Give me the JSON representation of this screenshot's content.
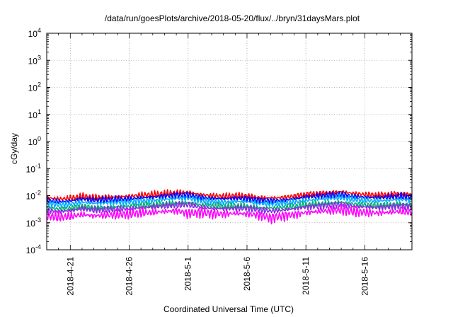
{
  "chart_data": {
    "type": "line",
    "title": "/data/run/goesPlots/archive/2018-05-20/flux/../bryn/31daysMars.plot",
    "xlabel": "Coordinated Universal Time (UTC)",
    "ylabel": "cGy/day",
    "y_scale": "log",
    "ylim": [
      0.0001,
      10000
    ],
    "xlim": [
      "2018-04-19",
      "2018-05-20"
    ],
    "grid": true,
    "legend": "none",
    "x_ticks": [
      {
        "date": "2018-04-21",
        "label": "2018-4-21"
      },
      {
        "date": "2018-04-26",
        "label": "2018-4-26"
      },
      {
        "date": "2018-05-01",
        "label": "2018-5-1"
      },
      {
        "date": "2018-05-06",
        "label": "2018-5-6"
      },
      {
        "date": "2018-05-11",
        "label": "2018-5-11"
      },
      {
        "date": "2018-05-16",
        "label": "2018-5-16"
      }
    ],
    "y_ticks": [
      {
        "value": 0.0001,
        "base": "10",
        "exp": "-4"
      },
      {
        "value": 0.001,
        "base": "10",
        "exp": "-3"
      },
      {
        "value": 0.01,
        "base": "10",
        "exp": "-2"
      },
      {
        "value": 0.1,
        "base": "10",
        "exp": "-1"
      },
      {
        "value": 1,
        "base": "10",
        "exp": "0"
      },
      {
        "value": 10,
        "base": "10",
        "exp": "1"
      },
      {
        "value": 100,
        "base": "10",
        "exp": "2"
      },
      {
        "value": 1000,
        "base": "10",
        "exp": "3"
      },
      {
        "value": 10000,
        "base": "10",
        "exp": "4"
      }
    ],
    "x": [
      "2018-04-19",
      "2018-04-20",
      "2018-04-21",
      "2018-04-22",
      "2018-04-23",
      "2018-04-24",
      "2018-04-25",
      "2018-04-26",
      "2018-04-27",
      "2018-04-28",
      "2018-04-29",
      "2018-04-30",
      "2018-05-01",
      "2018-05-02",
      "2018-05-03",
      "2018-05-04",
      "2018-05-05",
      "2018-05-06",
      "2018-05-07",
      "2018-05-08",
      "2018-05-09",
      "2018-05-10",
      "2018-05-11",
      "2018-05-12",
      "2018-05-13",
      "2018-05-14",
      "2018-05-15",
      "2018-05-16",
      "2018-05-17",
      "2018-05-18",
      "2018-05-19",
      "2018-05-20"
    ],
    "series": [
      {
        "color": "#ff0000",
        "values": [
          0.0085,
          0.0075,
          0.008,
          0.0095,
          0.0085,
          0.0088,
          0.0092,
          0.0095,
          0.0105,
          0.011,
          0.012,
          0.013,
          0.0135,
          0.011,
          0.01,
          0.0095,
          0.01,
          0.0098,
          0.0085,
          0.0082,
          0.0085,
          0.0095,
          0.011,
          0.012,
          0.013,
          0.014,
          0.012,
          0.011,
          0.0105,
          0.011,
          0.012,
          0.011
        ]
      },
      {
        "color": "#0000ff",
        "values": [
          0.0068,
          0.006,
          0.0064,
          0.0076,
          0.0068,
          0.007,
          0.0074,
          0.0076,
          0.0084,
          0.0088,
          0.0096,
          0.0104,
          0.0108,
          0.0088,
          0.008,
          0.0076,
          0.008,
          0.0078,
          0.0068,
          0.0066,
          0.0068,
          0.0076,
          0.0088,
          0.0096,
          0.0104,
          0.0112,
          0.0096,
          0.0088,
          0.0084,
          0.0088,
          0.0096,
          0.0088
        ]
      },
      {
        "color": "#00aaff",
        "values": [
          0.0052,
          0.0046,
          0.0049,
          0.0058,
          0.0052,
          0.0054,
          0.0057,
          0.0058,
          0.0064,
          0.0067,
          0.0073,
          0.0079,
          0.0082,
          0.0067,
          0.0061,
          0.0058,
          0.0061,
          0.006,
          0.0052,
          0.005,
          0.0052,
          0.0058,
          0.0067,
          0.0073,
          0.0079,
          0.0085,
          0.0073,
          0.0067,
          0.0064,
          0.0067,
          0.0073,
          0.0067
        ]
      },
      {
        "color": "#00b070",
        "values": [
          0.0036,
          0.0032,
          0.0034,
          0.004,
          0.0036,
          0.0037,
          0.0039,
          0.004,
          0.0044,
          0.0046,
          0.005,
          0.0054,
          0.0056,
          0.0046,
          0.0042,
          0.004,
          0.0042,
          0.0041,
          0.0036,
          0.0035,
          0.0036,
          0.004,
          0.0046,
          0.005,
          0.0054,
          0.0058,
          0.005,
          0.0046,
          0.0044,
          0.0046,
          0.005,
          0.0046
        ]
      },
      {
        "color": "#8a2be2",
        "values": [
          0.0029,
          0.0026,
          0.0028,
          0.0033,
          0.0029,
          0.003,
          0.0032,
          0.0033,
          0.0036,
          0.0038,
          0.0041,
          0.0044,
          0.0046,
          0.0038,
          0.0034,
          0.0033,
          0.0034,
          0.0034,
          0.003,
          0.0027,
          0.0029,
          0.0033,
          0.0038,
          0.0041,
          0.0044,
          0.0048,
          0.0041,
          0.0038,
          0.0036,
          0.0038,
          0.0041,
          0.0038
        ]
      },
      {
        "color": "#ff00ff",
        "values": [
          0.0018,
          0.0016,
          0.0017,
          0.002,
          0.0018,
          0.0019,
          0.002,
          0.0021,
          0.0023,
          0.0024,
          0.0026,
          0.0028,
          0.0022,
          0.0024,
          0.0022,
          0.0021,
          0.0022,
          0.0021,
          0.0019,
          0.0015,
          0.0018,
          0.002,
          0.0024,
          0.0026,
          0.0028,
          0.003,
          0.0026,
          0.0024,
          0.0023,
          0.0024,
          0.0026,
          0.0024
        ]
      }
    ]
  }
}
